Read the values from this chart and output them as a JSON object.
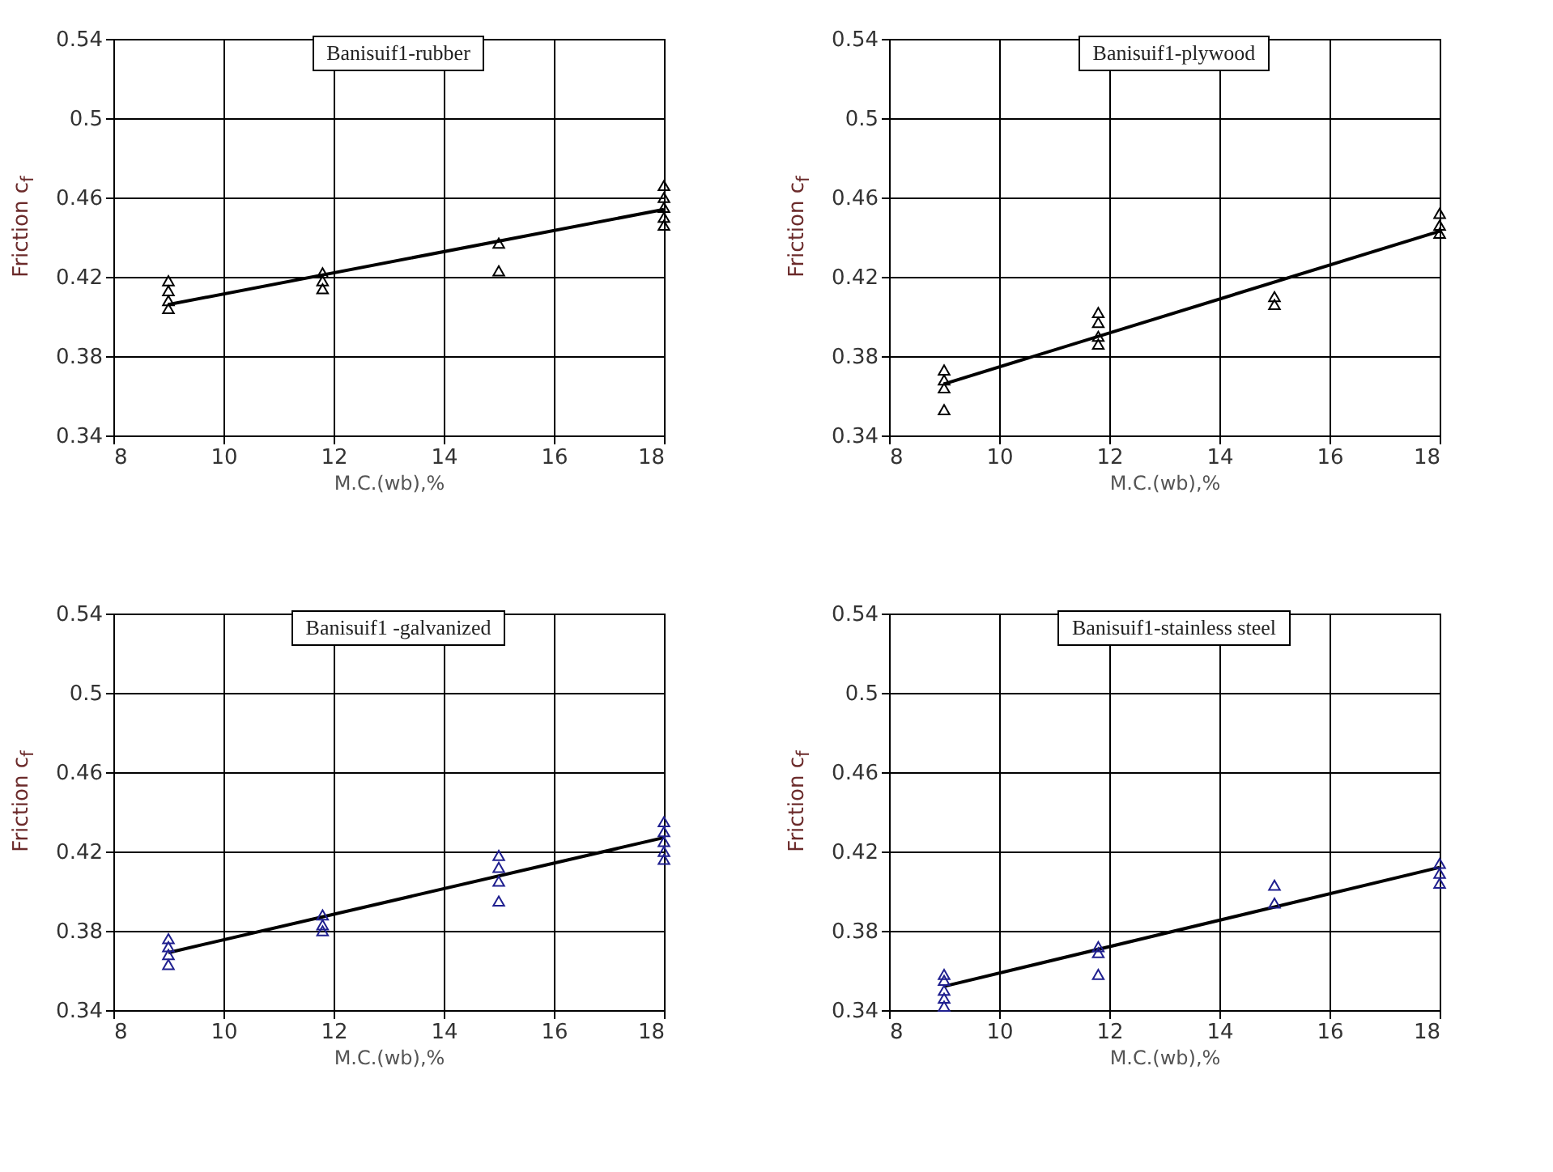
{
  "chart_data": [
    {
      "type": "scatter",
      "title": "Banisuif1-rubber",
      "xlabel": "M.C.(wb),%",
      "ylabel": "Friction c$_{f}$",
      "xlim": [
        8,
        18
      ],
      "xticks": [
        8,
        10,
        12,
        14,
        16,
        18
      ],
      "ylim": [
        0.34,
        0.54
      ],
      "yticks": [
        0.34,
        0.38,
        0.42,
        0.46,
        0.5,
        0.54
      ],
      "grid": true,
      "series": [
        {
          "marker": "triangle",
          "color": "#000000",
          "x": [
            9,
            9,
            9,
            9,
            11.8,
            11.8,
            11.8,
            15,
            15,
            18,
            18,
            18,
            18,
            18
          ],
          "values": [
            0.418,
            0.413,
            0.408,
            0.404,
            0.422,
            0.418,
            0.414,
            0.437,
            0.423,
            0.466,
            0.46,
            0.455,
            0.45,
            0.446
          ]
        },
        {
          "type": "line",
          "color": "#000000",
          "x": [
            9,
            18
          ],
          "values": [
            0.406,
            0.454
          ]
        }
      ]
    },
    {
      "type": "scatter",
      "title": "Banisuif1-plywood",
      "xlabel": "M.C.(wb),%",
      "ylabel": "Friction c$_{f}$",
      "xlim": [
        8,
        18
      ],
      "xticks": [
        8,
        10,
        12,
        14,
        16,
        18
      ],
      "ylim": [
        0.34,
        0.54
      ],
      "yticks": [
        0.34,
        0.38,
        0.42,
        0.46,
        0.5,
        0.54
      ],
      "grid": true,
      "series": [
        {
          "marker": "triangle",
          "color": "#000000",
          "x": [
            9,
            9,
            9,
            9,
            11.8,
            11.8,
            11.8,
            11.8,
            15,
            15,
            18,
            18,
            18
          ],
          "values": [
            0.373,
            0.368,
            0.364,
            0.353,
            0.402,
            0.397,
            0.39,
            0.386,
            0.41,
            0.406,
            0.452,
            0.446,
            0.442
          ]
        },
        {
          "type": "line",
          "color": "#000000",
          "x": [
            9,
            18
          ],
          "values": [
            0.366,
            0.443
          ]
        }
      ]
    },
    {
      "type": "scatter",
      "title": "Banisuif1 -galvanized",
      "xlabel": "M.C.(wb),%",
      "ylabel": "Friction c$_{f}$",
      "xlim": [
        8,
        18
      ],
      "xticks": [
        8,
        10,
        12,
        14,
        16,
        18
      ],
      "ylim": [
        0.34,
        0.54
      ],
      "yticks": [
        0.34,
        0.38,
        0.42,
        0.46,
        0.5,
        0.54
      ],
      "grid": true,
      "series": [
        {
          "marker": "triangle",
          "color": "#1f1f8f",
          "x": [
            9,
            9,
            9,
            9,
            11.8,
            11.8,
            11.8,
            15,
            15,
            15,
            15,
            18,
            18,
            18,
            18,
            18
          ],
          "values": [
            0.376,
            0.372,
            0.368,
            0.363,
            0.388,
            0.383,
            0.38,
            0.418,
            0.412,
            0.405,
            0.395,
            0.435,
            0.43,
            0.425,
            0.42,
            0.416
          ]
        },
        {
          "type": "line",
          "color": "#000000",
          "x": [
            9,
            18
          ],
          "values": [
            0.369,
            0.427
          ]
        }
      ]
    },
    {
      "type": "scatter",
      "title": "Banisuif1-stainless steel",
      "xlabel": "M.C.(wb),%",
      "ylabel": "Friction c$_{f}$",
      "xlim": [
        8,
        18
      ],
      "xticks": [
        8,
        10,
        12,
        14,
        16,
        18
      ],
      "ylim": [
        0.34,
        0.54
      ],
      "yticks": [
        0.34,
        0.38,
        0.42,
        0.46,
        0.5,
        0.54
      ],
      "grid": true,
      "series": [
        {
          "marker": "triangle",
          "color": "#1f1f8f",
          "x": [
            9,
            9,
            9,
            9,
            9,
            11.8,
            11.8,
            11.8,
            15,
            15,
            18,
            18,
            18
          ],
          "values": [
            0.358,
            0.355,
            0.35,
            0.346,
            0.342,
            0.372,
            0.369,
            0.358,
            0.403,
            0.394,
            0.414,
            0.409,
            0.404
          ]
        },
        {
          "type": "line",
          "color": "#000000",
          "x": [
            9,
            18
          ],
          "values": [
            0.352,
            0.412
          ]
        }
      ]
    }
  ]
}
